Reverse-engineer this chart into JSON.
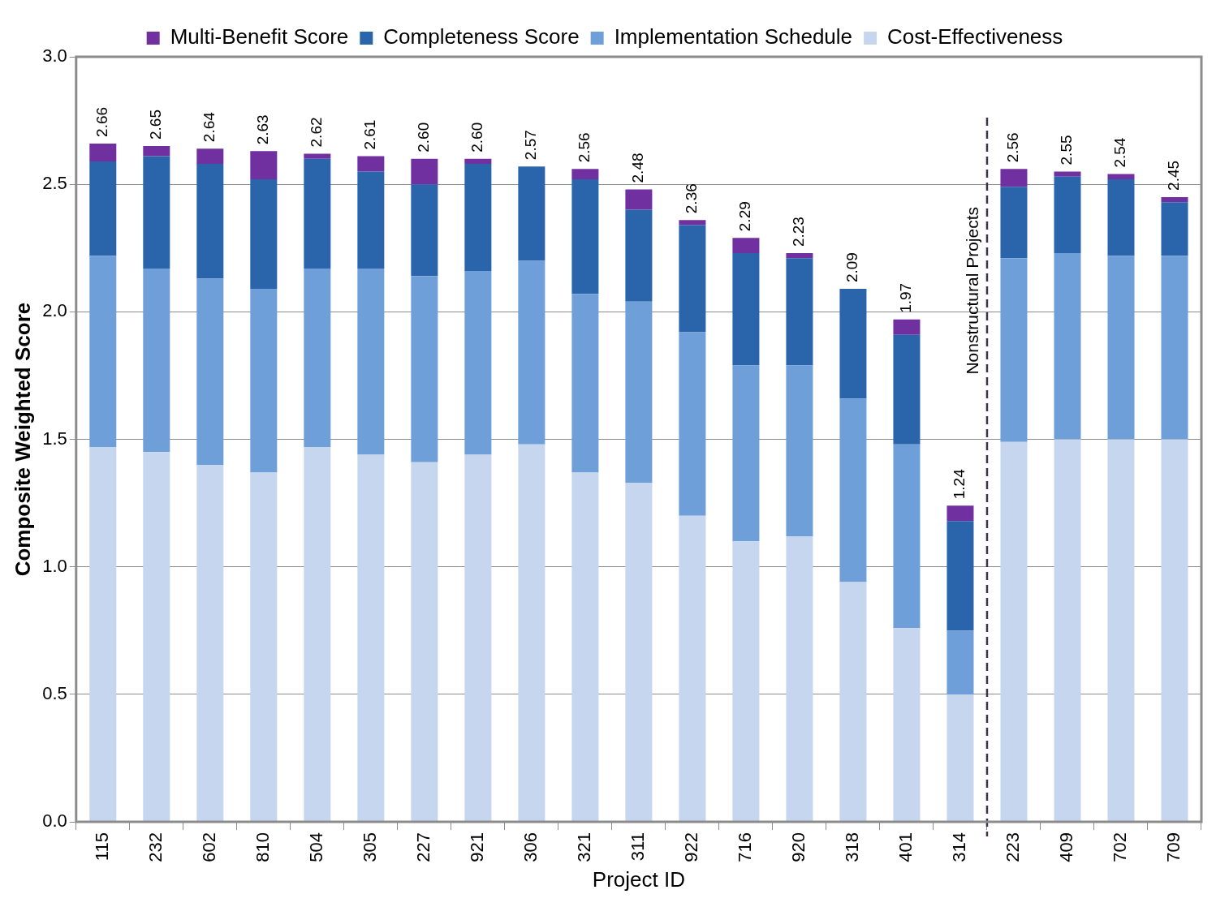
{
  "chart_data": {
    "type": "bar",
    "stacked": true,
    "xlabel": "Project ID",
    "ylabel": "Composite Weighted Score",
    "categories": [
      "115",
      "232",
      "602",
      "810",
      "504",
      "305",
      "227",
      "921",
      "306",
      "321",
      "311",
      "922",
      "716",
      "920",
      "318",
      "401",
      "314",
      "223",
      "409",
      "702",
      "709"
    ],
    "series": [
      {
        "name": "Cost-Effectiveness",
        "color": "#c5d6ee",
        "values": [
          1.47,
          1.45,
          1.4,
          1.37,
          1.47,
          1.44,
          1.41,
          1.44,
          1.48,
          1.37,
          1.33,
          1.2,
          1.1,
          1.12,
          0.94,
          0.76,
          0.5,
          1.49,
          1.5,
          1.5,
          1.5
        ]
      },
      {
        "name": "Implementation Schedule",
        "color": "#6f9fd8",
        "values": [
          0.75,
          0.72,
          0.73,
          0.72,
          0.7,
          0.73,
          0.73,
          0.72,
          0.72,
          0.7,
          0.71,
          0.72,
          0.69,
          0.67,
          0.72,
          0.72,
          0.25,
          0.72,
          0.73,
          0.72,
          0.72
        ]
      },
      {
        "name": "Completeness Score",
        "color": "#2a65ab",
        "values": [
          0.37,
          0.44,
          0.45,
          0.43,
          0.43,
          0.38,
          0.36,
          0.42,
          0.37,
          0.45,
          0.36,
          0.42,
          0.44,
          0.42,
          0.43,
          0.43,
          0.43,
          0.28,
          0.3,
          0.3,
          0.21
        ]
      },
      {
        "name": "Multi-Benefit Score",
        "color": "#7030a0",
        "values": [
          0.07,
          0.04,
          0.06,
          0.11,
          0.02,
          0.06,
          0.1,
          0.02,
          0,
          0.04,
          0.08,
          0.02,
          0.06,
          0.02,
          0,
          0.06,
          0.06,
          0.07,
          0.02,
          0.02,
          0.02
        ]
      }
    ],
    "totals": [
      "2.66",
      "2.65",
      "2.64",
      "2.63",
      "2.62",
      "2.61",
      "2.60",
      "2.60",
      "2.57",
      "2.56",
      "2.48",
      "2.36",
      "2.29",
      "2.23",
      "2.09",
      "1.97",
      "1.24",
      "2.56",
      "2.55",
      "2.54",
      "2.45"
    ],
    "ref_lines": [
      {
        "axis": "x",
        "value": "223",
        "label": "Nonstructural Projects",
        "color": "#403152",
        "line_style": "dashed"
      }
    ],
    "ylim": [
      0,
      3
    ],
    "yticks": [
      {
        "value": 0,
        "label": "0.0"
      },
      {
        "value": 0.5,
        "label": "0.5"
      },
      {
        "value": 1,
        "label": "1.0"
      },
      {
        "value": 1.5,
        "label": "1.5"
      },
      {
        "value": 2,
        "label": "2.0"
      },
      {
        "value": 2.5,
        "label": "2.5"
      },
      {
        "value": 3,
        "label": "3.0"
      }
    ],
    "grid": "y",
    "legend": "top"
  }
}
